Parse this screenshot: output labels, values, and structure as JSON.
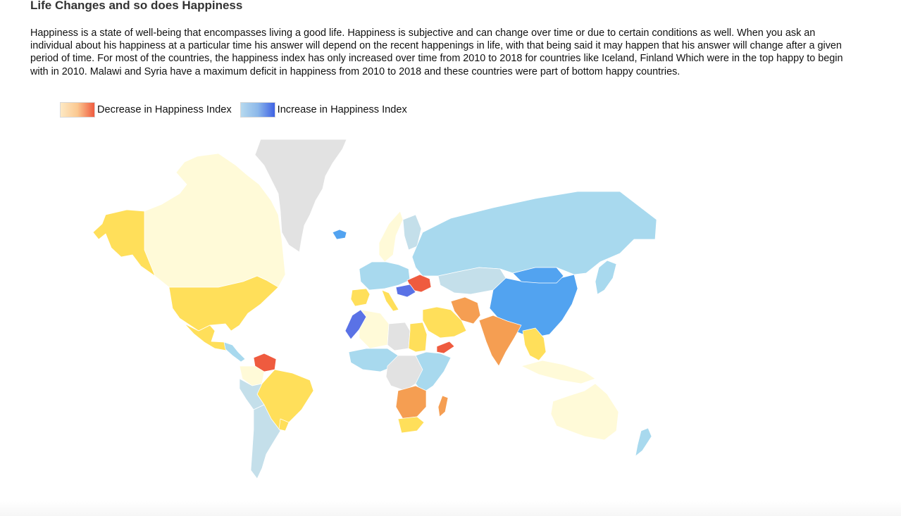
{
  "page": {
    "title": "Life Changes and so does Happiness",
    "description": "Happiness is a state of well-being that encompasses living a good life. Happiness is subjective and can change over time or due to certain conditions as well. When you ask an individual about his happiness at a particular time his answer will depend on the recent happenings in life, with that being said it may happen that his answer will change after a given period of time. For most of the countries, the happiness index has only increased over time from 2010 to 2018 for countries like Iceland, Finland Which were in the top happy to begin with in 2010. Malawi and Syria have a maximum deficit in happiness from 2010 to 2018 and these countries were part of bottom happy countries."
  },
  "legend": {
    "decrease_label": "Decrease in Happiness Index",
    "increase_label": "Increase in Happiness Index",
    "decrease_colors": [
      "#fde9c4",
      "#ef5b3f"
    ],
    "increase_colors": [
      "#b6d9ee",
      "#3f62e4"
    ]
  },
  "map": {
    "palette": {
      "no-data": "#e2e2e2",
      "small-decrease": "#fffad8",
      "moderate-decrease": "#ffdf5a",
      "large-decrease": "#f59e52",
      "largest-decrease": "#ef5b3f",
      "small-increase": "#c4dfea",
      "moderate-increase": "#a8d9ee",
      "large-increase": "#52a3f0",
      "largest-increase": "#5a72e6"
    },
    "regions": [
      {
        "id": "greenland",
        "category": "no-data"
      },
      {
        "id": "canada",
        "category": "small-decrease"
      },
      {
        "id": "alaska",
        "category": "moderate-decrease"
      },
      {
        "id": "usa",
        "category": "moderate-decrease"
      },
      {
        "id": "mexico",
        "category": "moderate-decrease"
      },
      {
        "id": "central-america",
        "category": "moderate-increase"
      },
      {
        "id": "venezuela",
        "category": "largest-decrease"
      },
      {
        "id": "colombia",
        "category": "small-decrease"
      },
      {
        "id": "brazil",
        "category": "moderate-decrease"
      },
      {
        "id": "peru",
        "category": "small-increase"
      },
      {
        "id": "chile-argentina",
        "category": "small-increase"
      },
      {
        "id": "uruguay",
        "category": "moderate-decrease"
      },
      {
        "id": "iceland",
        "category": "large-increase"
      },
      {
        "id": "scandinavia",
        "category": "small-decrease"
      },
      {
        "id": "finland",
        "category": "small-increase"
      },
      {
        "id": "western-europe",
        "category": "moderate-increase"
      },
      {
        "id": "iberia",
        "category": "moderate-decrease"
      },
      {
        "id": "italy",
        "category": "moderate-decrease"
      },
      {
        "id": "ukraine",
        "category": "largest-decrease"
      },
      {
        "id": "balkans",
        "category": "largest-increase"
      },
      {
        "id": "russia",
        "category": "moderate-increase"
      },
      {
        "id": "kazakhstan",
        "category": "small-increase"
      },
      {
        "id": "china",
        "category": "large-increase"
      },
      {
        "id": "mongolia",
        "category": "large-increase"
      },
      {
        "id": "middle-east",
        "category": "moderate-decrease"
      },
      {
        "id": "iran",
        "category": "large-decrease"
      },
      {
        "id": "india",
        "category": "large-decrease"
      },
      {
        "id": "southeast-asia",
        "category": "moderate-decrease"
      },
      {
        "id": "japan",
        "category": "moderate-increase"
      },
      {
        "id": "indonesia",
        "category": "small-decrease"
      },
      {
        "id": "australia",
        "category": "small-decrease"
      },
      {
        "id": "new-zealand",
        "category": "moderate-increase"
      },
      {
        "id": "morocco",
        "category": "largest-increase"
      },
      {
        "id": "algeria",
        "category": "small-decrease"
      },
      {
        "id": "libya",
        "category": "no-data"
      },
      {
        "id": "egypt",
        "category": "moderate-decrease"
      },
      {
        "id": "yemen",
        "category": "largest-decrease"
      },
      {
        "id": "west-africa",
        "category": "moderate-increase"
      },
      {
        "id": "central-africa",
        "category": "no-data"
      },
      {
        "id": "east-africa",
        "category": "moderate-increase"
      },
      {
        "id": "southern-africa",
        "category": "large-decrease"
      },
      {
        "id": "south-africa",
        "category": "moderate-decrease"
      },
      {
        "id": "madagascar",
        "category": "large-decrease"
      }
    ]
  }
}
